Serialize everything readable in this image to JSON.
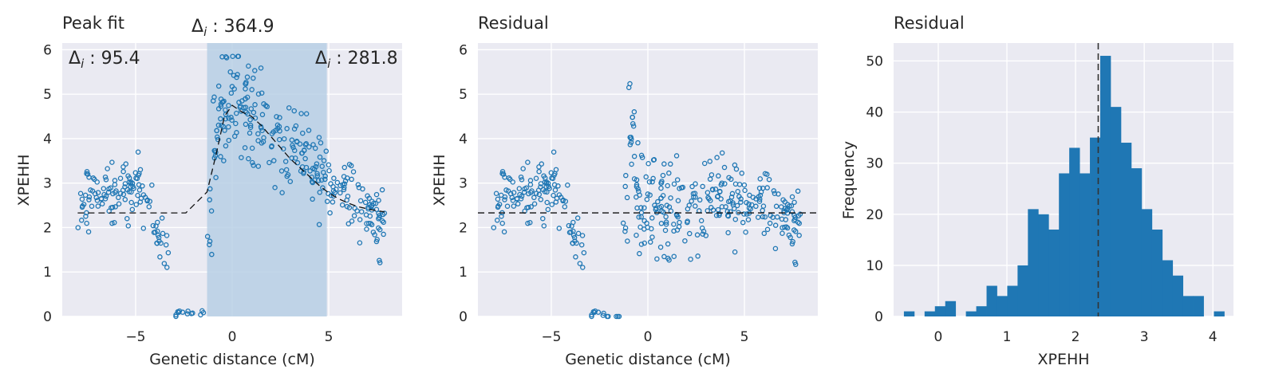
{
  "panels": {
    "peak": {
      "title": "Peak fit",
      "xlabel": "Genetic distance (cM)",
      "ylabel": "XPEHH"
    },
    "resid": {
      "title": "Residual",
      "xlabel": "Genetic distance (cM)",
      "ylabel": "XPEHH"
    },
    "hist": {
      "title": "Residual",
      "xlabel": "XPEHH",
      "ylabel": "Frequency"
    }
  },
  "annotations": {
    "delta_left": "95.4",
    "delta_top": "364.9",
    "delta_right": "281.8"
  },
  "colors": {
    "points": "#1f77b4",
    "bars": "#1f77b4",
    "background": "#eaeaf2",
    "shade": "#b4cde3"
  },
  "chart_data": [
    {
      "type": "scatter",
      "title": "Peak fit",
      "xlabel": "Genetic distance (cM)",
      "ylabel": "XPEHH",
      "xlim": [
        -8.8,
        8.8
      ],
      "ylim": [
        0,
        6.15
      ],
      "xticks": [
        -5,
        0,
        5
      ],
      "yticks": [
        0,
        1,
        2,
        3,
        4,
        5,
        6
      ],
      "shaded_region": [
        -1.3,
        4.9
      ],
      "fit_line": {
        "x": [
          -8,
          -7,
          -6,
          -5,
          -4,
          -3,
          -2.4,
          -1.3,
          -0.8,
          -0.4,
          0,
          0.5,
          1,
          1.5,
          2,
          2.5,
          3,
          3.5,
          4,
          4.5,
          5,
          5.5,
          6,
          6.5,
          7,
          7.5,
          7.9
        ],
        "y": [
          2.33,
          2.33,
          2.33,
          2.33,
          2.33,
          2.33,
          2.33,
          2.8,
          3.7,
          4.5,
          4.75,
          4.6,
          4.5,
          4.3,
          4.05,
          3.8,
          3.55,
          3.35,
          3.15,
          2.95,
          2.78,
          2.65,
          2.55,
          2.47,
          2.42,
          2.38,
          2.35
        ]
      },
      "point_count": 420
    },
    {
      "type": "scatter",
      "title": "Residual",
      "xlabel": "Genetic distance (cM)",
      "ylabel": "XPEHH",
      "xlim": [
        -8.8,
        8.8
      ],
      "ylim": [
        0,
        6.15
      ],
      "xticks": [
        -5,
        0,
        5
      ],
      "yticks": [
        0,
        1,
        2,
        3,
        4,
        5,
        6
      ],
      "hline": 2.33,
      "point_count": 420
    },
    {
      "type": "bar",
      "title": "Residual",
      "xlabel": "XPEHH",
      "ylabel": "Frequency",
      "xlim": [
        -0.65,
        4.3
      ],
      "ylim": [
        0,
        53.5
      ],
      "xticks": [
        0,
        1,
        2,
        3,
        4
      ],
      "yticks": [
        0,
        10,
        20,
        30,
        40,
        50
      ],
      "vline": 2.33,
      "bin_start": -0.5,
      "bin_width": 0.1505,
      "counts": [
        1,
        0,
        1,
        2,
        3,
        0,
        1,
        2,
        6,
        4,
        6,
        10,
        21,
        20,
        17,
        28,
        33,
        28,
        35,
        51,
        41,
        34,
        29,
        21,
        17,
        11,
        8,
        4,
        4,
        0,
        1
      ]
    }
  ]
}
